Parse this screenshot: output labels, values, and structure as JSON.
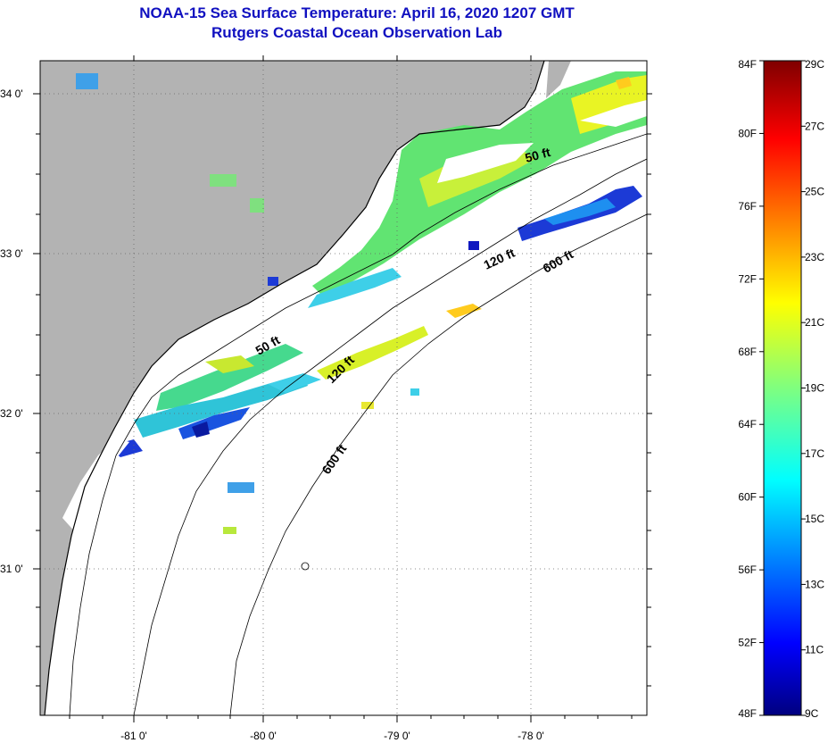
{
  "title": "NOAA-15 Sea Surface Temperature:  April 16, 2020 1207 GMT",
  "subtitle": "Rutgers Coastal Ocean Observation Lab",
  "map": {
    "lat_labels": [
      "34 0'",
      "33 0'",
      "32 0'",
      "31 0'"
    ],
    "lon_labels": [
      "-81 0'",
      "-80 0'",
      "-79 0'",
      "-78 0'"
    ],
    "contour_labels": {
      "fifty_north": "50 ft",
      "fifty_south": "50 ft",
      "onetwenty_north": "120 ft",
      "onetwenty_south": "120 ft",
      "sixhundred_north": "600 ft",
      "sixhundred_south": "600 ft"
    },
    "colors": {
      "land": "#b3b3b3",
      "ocean_nodata": "#ffffff",
      "coast": "#000000",
      "title": "#1010c0"
    }
  },
  "colorbar": {
    "f_labels": [
      "84F",
      "80F",
      "76F",
      "72F",
      "68F",
      "64F",
      "60F",
      "56F",
      "52F",
      "48F"
    ],
    "c_labels": [
      "29C",
      "27C",
      "25C",
      "23C",
      "21C",
      "19C",
      "17C",
      "15C",
      "13C",
      "11C",
      "9C"
    ],
    "range_f": [
      48,
      84
    ],
    "range_c": [
      9,
      29
    ]
  }
}
